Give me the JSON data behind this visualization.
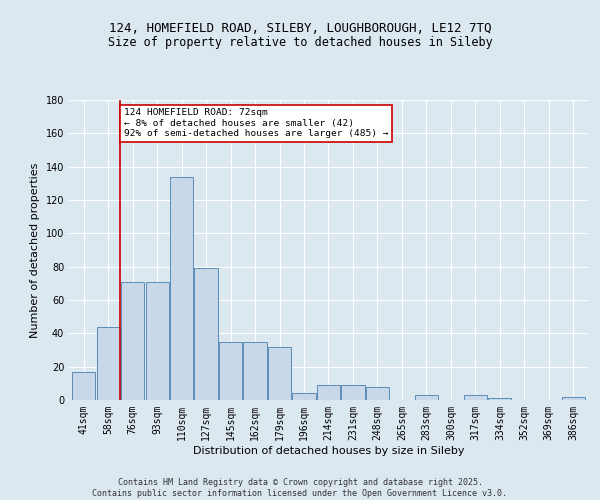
{
  "title1": "124, HOMEFIELD ROAD, SILEBY, LOUGHBOROUGH, LE12 7TQ",
  "title2": "Size of property relative to detached houses in Sileby",
  "xlabel": "Distribution of detached houses by size in Sileby",
  "ylabel": "Number of detached properties",
  "bar_labels": [
    "41sqm",
    "58sqm",
    "76sqm",
    "93sqm",
    "110sqm",
    "127sqm",
    "145sqm",
    "162sqm",
    "179sqm",
    "196sqm",
    "214sqm",
    "231sqm",
    "248sqm",
    "265sqm",
    "283sqm",
    "300sqm",
    "317sqm",
    "334sqm",
    "352sqm",
    "369sqm",
    "386sqm"
  ],
  "bar_values": [
    17,
    44,
    71,
    71,
    134,
    79,
    35,
    35,
    32,
    4,
    9,
    9,
    8,
    0,
    3,
    0,
    3,
    1,
    0,
    0,
    2
  ],
  "bar_color": "#c8d8e8",
  "bar_edge_color": "#5b8db8",
  "vline_x": 1.5,
  "vline_color": "#cc0000",
  "annotation_text": "124 HOMEFIELD ROAD: 72sqm\n← 8% of detached houses are smaller (42)\n92% of semi-detached houses are larger (485) →",
  "annotation_box_color": "#ffffff",
  "annotation_box_edge_color": "#cc0000",
  "ylim": [
    0,
    180
  ],
  "yticks": [
    0,
    20,
    40,
    60,
    80,
    100,
    120,
    140,
    160,
    180
  ],
  "footer": "Contains HM Land Registry data © Crown copyright and database right 2025.\nContains public sector information licensed under the Open Government Licence v3.0.",
  "background_color": "#dce8f0",
  "plot_background_color": "#dce8f0",
  "grid_color": "#ffffff",
  "title_fontsize": 9,
  "subtitle_fontsize": 8.5,
  "ylabel_fontsize": 8,
  "xlabel_fontsize": 8,
  "tick_fontsize": 7,
  "annotation_fontsize": 6.8,
  "footer_fontsize": 6
}
